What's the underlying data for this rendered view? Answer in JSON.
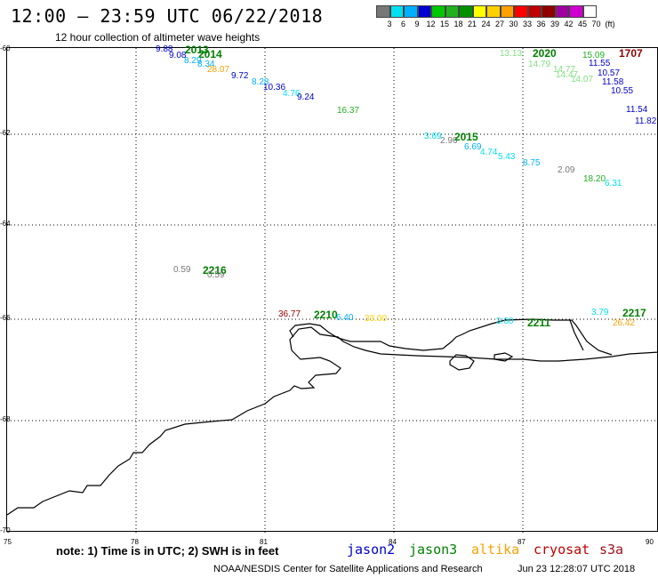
{
  "header": {
    "title": "12:00 – 23:59 UTC 06/22/2018",
    "subtitle": "12 hour collection of altimeter wave heights"
  },
  "scale": {
    "colors": [
      "#777777",
      "#00e0f0",
      "#00b0ff",
      "#0000d0",
      "#00c800",
      "#20b020",
      "#009000",
      "#ffff00",
      "#ffd000",
      "#ffa000",
      "#ff0000",
      "#c00000",
      "#900000",
      "#a000a0",
      "#d000d0",
      "#ffffff"
    ],
    "labels": [
      "3",
      "6",
      "9",
      "12",
      "15",
      "18",
      "21",
      "24",
      "27",
      "30",
      "33",
      "36",
      "39",
      "42",
      "45",
      "70",
      "(ft)"
    ]
  },
  "axes": {
    "lat_labels": [
      "-60",
      "-62",
      "-64",
      "-66",
      "-68",
      "-70"
    ],
    "lon_labels": [
      "75",
      "78",
      "81",
      "84",
      "87",
      "90"
    ]
  },
  "observations": [
    {
      "v": "9.88",
      "c": "#0000d0"
    },
    {
      "v": "2013",
      "c": "#008000",
      "t": 1
    },
    {
      "v": "9.08",
      "c": "#0000d0"
    },
    {
      "v": "2014",
      "c": "#008000",
      "t": 1
    },
    {
      "v": "8.29",
      "c": "#00b0ff"
    },
    {
      "v": "8.34",
      "c": "#00b0ff"
    },
    {
      "v": "28.07",
      "c": "#ffa000"
    },
    {
      "v": "9.72",
      "c": "#0000d0"
    },
    {
      "v": "8.28",
      "c": "#00b0ff"
    },
    {
      "v": "10.36",
      "c": "#0000d0"
    },
    {
      "v": "4.76",
      "c": "#00e0f0"
    },
    {
      "v": "9.24",
      "c": "#0000d0"
    },
    {
      "v": "16.37",
      "c": "#20b020"
    },
    {
      "v": "13.13",
      "c": "#80e080"
    },
    {
      "v": "2020",
      "c": "#008000",
      "t": 1
    },
    {
      "v": "15.09",
      "c": "#20b020"
    },
    {
      "v": "1707",
      "c": "#900000",
      "t": 1
    },
    {
      "v": "11.55",
      "c": "#0000d0"
    },
    {
      "v": "14.79",
      "c": "#80e080"
    },
    {
      "v": "14.77",
      "c": "#80e080"
    },
    {
      "v": "14.47",
      "c": "#80e080"
    },
    {
      "v": "10.57",
      "c": "#0000d0"
    },
    {
      "v": "14.07",
      "c": "#80e080"
    },
    {
      "v": "11.58",
      "c": "#0000d0"
    },
    {
      "v": "10.55",
      "c": "#0000d0"
    },
    {
      "v": "11.54",
      "c": "#0000d0"
    },
    {
      "v": "11.82",
      "c": "#0000d0"
    },
    {
      "v": "3.69",
      "c": "#00e0f0"
    },
    {
      "v": "2.96",
      "c": "#777777"
    },
    {
      "v": "2015",
      "c": "#008000",
      "t": 1
    },
    {
      "v": "6.69",
      "c": "#00b0ff"
    },
    {
      "v": "4.74",
      "c": "#00e0f0"
    },
    {
      "v": "5.43",
      "c": "#00e0f0"
    },
    {
      "v": "8.75",
      "c": "#00b0ff"
    },
    {
      "v": "2.09",
      "c": "#777777"
    },
    {
      "v": "18.20",
      "c": "#20b020"
    },
    {
      "v": "6.31",
      "c": "#00e0f0"
    },
    {
      "v": "0.59",
      "c": "#777777"
    },
    {
      "v": "2216",
      "c": "#008000",
      "t": 1
    },
    {
      "v": "0.59",
      "c": "#777777"
    },
    {
      "v": "36.77",
      "c": "#900000"
    },
    {
      "v": "2210",
      "c": "#008000",
      "t": 1
    },
    {
      "v": "6.40",
      "c": "#00b0ff"
    },
    {
      "v": "33.00",
      "c": "#ffd000"
    },
    {
      "v": "3.00",
      "c": "#00e0f0"
    },
    {
      "v": "2211",
      "c": "#008000",
      "t": 1
    },
    {
      "v": "3.79",
      "c": "#00e0f0"
    },
    {
      "v": "2217",
      "c": "#008000",
      "t": 1
    },
    {
      "v": "26.42",
      "c": "#ffa000"
    }
  ],
  "footer": {
    "note": "note: 1) Time is in UTC; 2) SWH is in feet",
    "satellites": [
      {
        "name": "jason2",
        "color": "#0000d0"
      },
      {
        "name": "jason3",
        "color": "#008000"
      },
      {
        "name": "altika",
        "color": "#ffa000"
      },
      {
        "name": "cryosat",
        "color": "#c00000"
      },
      {
        "name": "s3a",
        "color": "#a01020"
      }
    ],
    "credit": "NOAA/NESDIS Center for Satellite Applications and Research",
    "timestamp": "Jun 23 12:28:07 UTC 2018"
  }
}
